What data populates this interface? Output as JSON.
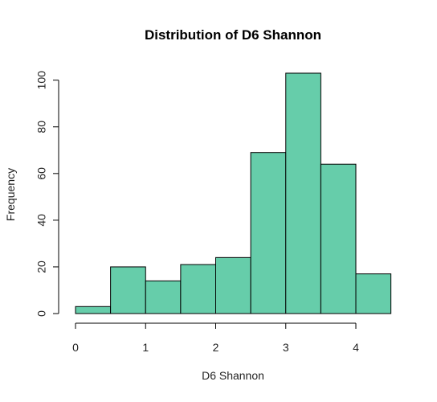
{
  "chart_data": {
    "type": "bar",
    "title": "Distribution of D6 Shannon",
    "xlabel": "D6 Shannon",
    "ylabel": "Frequency",
    "bins": [
      {
        "x0": 0.0,
        "x1": 0.5,
        "value": 3
      },
      {
        "x0": 0.5,
        "x1": 1.0,
        "value": 20
      },
      {
        "x0": 1.0,
        "x1": 1.5,
        "value": 14
      },
      {
        "x0": 1.5,
        "x1": 2.0,
        "value": 21
      },
      {
        "x0": 2.0,
        "x1": 2.5,
        "value": 24
      },
      {
        "x0": 2.5,
        "x1": 3.0,
        "value": 69
      },
      {
        "x0": 3.0,
        "x1": 3.5,
        "value": 103
      },
      {
        "x0": 3.5,
        "x1": 4.0,
        "value": 64
      },
      {
        "x0": 4.0,
        "x1": 4.5,
        "value": 17
      }
    ],
    "xlim": [
      0,
      4.5
    ],
    "ylim": [
      0,
      103
    ],
    "x_ticks": [
      0,
      1,
      2,
      3,
      4
    ],
    "x_tick_labels": [
      "0",
      "1",
      "2",
      "3",
      "4"
    ],
    "y_ticks": [
      0,
      20,
      40,
      60,
      80,
      100
    ],
    "y_tick_labels": [
      "0",
      "20",
      "40",
      "60",
      "80",
      "100"
    ],
    "bar_color": "#66CDAA",
    "grid": false,
    "legend": "none"
  }
}
